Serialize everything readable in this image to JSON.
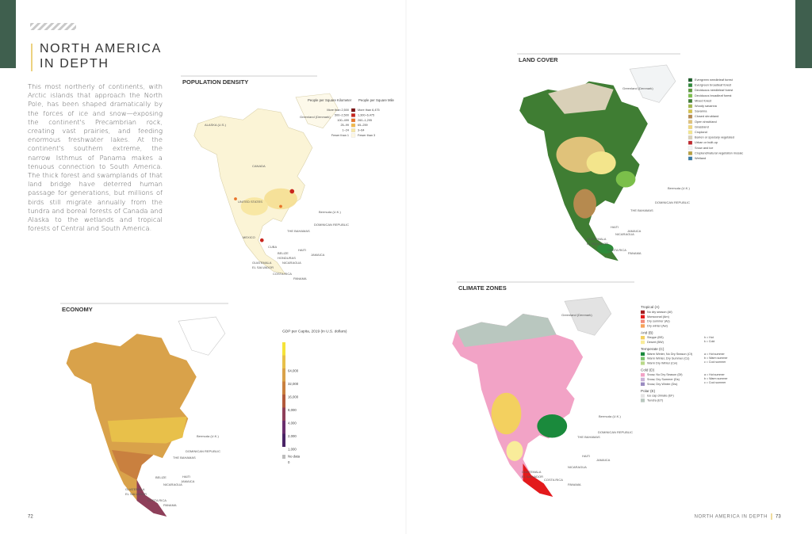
{
  "header": {
    "title_line1": "NORTH AMERICA",
    "title_line2": "IN DEPTH"
  },
  "intro": "This most northerly of continents, with Arctic islands that approach the North Pole, has been shaped dramatically by the forces of ice and snow—exposing the continent's Precambrian rock, creating vast prairies, and feeding enormous freshwater lakes. At the continent's southern extreme, the narrow Isthmus of Panama makes a tenuous connection to South America. The thick forest and swamplands of that land bridge have deterred human passage for generations, but millions of birds still migrate annually from the tundra and boreal forests of Canada and Alaska to the wetlands and tropical forests of Central and South America.",
  "footer": {
    "left_page": "72",
    "right_title": "NORTH AMERICA IN DEPTH",
    "right_page": "73"
  },
  "population": {
    "title": "POPULATION DENSITY",
    "labels": [
      "Greenland (Denmark)",
      "ALASKA (U.S.)",
      "CANADA",
      "UNITED STATES",
      "MEXICO",
      "Bermuda (U.K.)",
      "THE BAHAMAS",
      "CUBA",
      "HAITI",
      "JAMAICA",
      "BELIZE",
      "HONDURAS",
      "GUATEMALA",
      "EL SALVADOR",
      "NICARAGUA",
      "COSTA RICA",
      "PANAMA",
      "DOMINICAN REPUBLIC"
    ],
    "legend": {
      "header_km": "People per Square Kilometer",
      "header_mi": "People per Square Mile",
      "rows": [
        {
          "km": "More than 2,500",
          "mi": "More than 6,475",
          "color": "#7a1416"
        },
        {
          "km": "500–2,500",
          "mi": "1,300–6,475",
          "color": "#c8251d"
        },
        {
          "km": "100–499",
          "mi": "260–1,295",
          "color": "#e8742a"
        },
        {
          "km": "25–99",
          "mi": "65–259",
          "color": "#f2b84b"
        },
        {
          "km": "1–24",
          "mi": "3–64",
          "color": "#f8e7a4"
        },
        {
          "km": "Fewer than 1",
          "mi": "Fewer than 3",
          "color": "#fdf7e2"
        }
      ]
    }
  },
  "land_cover": {
    "title": "LAND COVER",
    "labels": [
      "Greenland (Denmark)",
      "Bermuda (U.K.)",
      "THE BAHAMAS",
      "DOMINICAN REPUBLIC",
      "JAMAICA",
      "HAITI",
      "GUATEMALA",
      "EL SALVADOR",
      "NICARAGUA",
      "COSTA RICA",
      "PANAMA"
    ],
    "legend": [
      {
        "label": "Evergreen needleleaf forest",
        "color": "#1d5e2a"
      },
      {
        "label": "Evergreen broadleaf forest",
        "color": "#2e8b3a"
      },
      {
        "label": "Deciduous needleleaf forest",
        "color": "#5c9a3c"
      },
      {
        "label": "Deciduous broadleaf forest",
        "color": "#7bbf4a"
      },
      {
        "label": "Mixed forest",
        "color": "#3f7d33"
      },
      {
        "label": "Woody savanna",
        "color": "#a3b84a"
      },
      {
        "label": "Savanna",
        "color": "#d6c24a"
      },
      {
        "label": "Closed shrubland",
        "color": "#b68a4f"
      },
      {
        "label": "Open shrubland",
        "color": "#e0c27a"
      },
      {
        "label": "Grassland",
        "color": "#f1d77a"
      },
      {
        "label": "Cropland",
        "color": "#f3e58c"
      },
      {
        "label": "Barren or sparsely vegetated",
        "color": "#d9d0b8"
      },
      {
        "label": "Urban or built-up",
        "color": "#c0272d"
      },
      {
        "label": "Snow and ice",
        "color": "#f2f4f5"
      },
      {
        "label": "Cropland/natural vegetation mosaic",
        "color": "#b9a03f"
      },
      {
        "label": "Wetland",
        "color": "#3a7ca5"
      }
    ]
  },
  "economy": {
    "title": "ECONOMY",
    "labels": [
      "Bermuda (U.K.)",
      "THE BAHAMAS",
      "DOMINICAN REPUBLIC",
      "HAITI",
      "JAMAICA",
      "BELIZE",
      "GUATEMALA",
      "EL SALVADOR",
      "NICARAGUA",
      "COSTA RICA",
      "PANAMA"
    ],
    "legend": {
      "heading": "GDP per Capita, 2019 (in U.S. dollars)",
      "stops": [
        {
          "label": "64,000",
          "color": "#f5e33a"
        },
        {
          "label": "32,000",
          "color": "#e8c04a"
        },
        {
          "label": "16,000",
          "color": "#d9a24a"
        },
        {
          "label": "8,000",
          "color": "#c9803f"
        },
        {
          "label": "4,000",
          "color": "#b25a3c"
        },
        {
          "label": "2,000",
          "color": "#8e3f5a"
        },
        {
          "label": "1,000",
          "color": "#6b2f6e"
        },
        {
          "label": "0",
          "color": "#4a2466"
        },
        {
          "label": "No data",
          "color": "#bdbdbd"
        }
      ]
    }
  },
  "climate": {
    "title": "CLIMATE ZONES",
    "labels": [
      "Greenland (Denmark)",
      "Bermuda (U.K.)",
      "THE BAHAMAS",
      "DOMINICAN REPUBLIC",
      "HAITI",
      "JAMAICA",
      "GUATEMALA",
      "EL SALVADOR",
      "NICARAGUA",
      "COSTA RICA",
      "PANAMA"
    ],
    "legend": [
      {
        "name": "Tropical (A)",
        "items": [
          {
            "label": "No dry season (Af)",
            "color": "#a51b1f"
          },
          {
            "label": "Monsoonal (Am)",
            "color": "#e31a1c"
          },
          {
            "label": "Dry summer (As)",
            "color": "#f28a7a"
          },
          {
            "label": "Dry winter (Aw)",
            "color": "#f6a25a"
          }
        ],
        "notes": []
      },
      {
        "name": "Arid (B)",
        "items": [
          {
            "label": "Steppe (BS)",
            "color": "#f3d05f"
          },
          {
            "label": "Desert (BW)",
            "color": "#f9ec9a"
          }
        ],
        "notes": [
          "h = Hot",
          "k = Cold"
        ]
      },
      {
        "name": "Temperate (C)",
        "items": [
          {
            "label": "Warm Winter, No Dry Season (Cf)",
            "color": "#1a8a3c"
          },
          {
            "label": "Warm Winter, Dry Summer (Cs)",
            "color": "#7ec46e"
          },
          {
            "label": "Warm Dry Winter (Cw)",
            "color": "#b9d98a"
          }
        ],
        "notes": [
          "a = Hot summer",
          "b = Warm summer",
          "c = Cool summer"
        ]
      },
      {
        "name": "Cold (D)",
        "items": [
          {
            "label": "Snow, No Dry Season (Df)",
            "color": "#f2a3c6"
          },
          {
            "label": "Snow, Dry Summer (Ds)",
            "color": "#c9b3d8"
          },
          {
            "label": "Snow, Dry Winter (Dw)",
            "color": "#9a8cc1"
          }
        ],
        "notes": [
          "a = Hot summer",
          "b = Warm summer",
          "c = Cool summer"
        ]
      },
      {
        "name": "Polar (E)",
        "items": [
          {
            "label": "Ice cap climate (EF)",
            "color": "#e3e3e3"
          },
          {
            "label": "Tundra (ET)",
            "color": "#b9c7bf"
          }
        ],
        "notes": []
      }
    ]
  }
}
